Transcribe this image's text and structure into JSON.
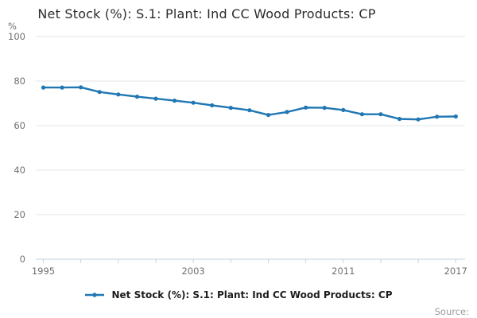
{
  "title": "Net Stock (%): S.1: Plant: Ind CC Wood Products: CP",
  "y_axis": {
    "unit_label": "%"
  },
  "legend": {
    "label": "Net Stock (%): S.1: Plant: Ind CC Wood Products: CP"
  },
  "footer": {
    "source_label": "Source:"
  },
  "colors": {
    "line": "#1f77b4",
    "grid": "#e6e6e6",
    "axis": "#c3d2e2",
    "muted_text": "#6f6f6f",
    "title_text": "#2b2b2b",
    "source_text": "#9b9b9b"
  },
  "chart_data": {
    "type": "line",
    "title": "Net Stock (%): S.1: Plant: Ind CC Wood Products: CP",
    "ylabel": "%",
    "xlabel": "",
    "ylim": [
      0,
      100
    ],
    "xlim": [
      1995,
      2017
    ],
    "grid": true,
    "legend_position": "bottom",
    "y_ticks": [
      0,
      20,
      40,
      60,
      80,
      100
    ],
    "x_ticks": [
      1995,
      1997,
      1999,
      2001,
      2003,
      2005,
      2007,
      2009,
      2011,
      2013,
      2015,
      2017
    ],
    "x_tick_labels_shown": [
      1995,
      2003,
      2011,
      2017
    ],
    "x": [
      1995,
      1996,
      1997,
      1998,
      1999,
      2000,
      2001,
      2002,
      2003,
      2004,
      2005,
      2006,
      2007,
      2008,
      2009,
      2010,
      2011,
      2012,
      2013,
      2014,
      2015,
      2016,
      2017
    ],
    "series": [
      {
        "name": "Net Stock (%): S.1: Plant: Ind CC Wood Products: CP",
        "values": [
          77.1,
          77.1,
          77.2,
          75.1,
          74.0,
          73.0,
          72.1,
          71.2,
          70.3,
          69.1,
          68.0,
          66.9,
          64.8,
          66.1,
          68.1,
          68.0,
          67.0,
          65.1,
          65.1,
          63.0,
          62.8,
          64.0,
          64.1
        ]
      }
    ]
  }
}
